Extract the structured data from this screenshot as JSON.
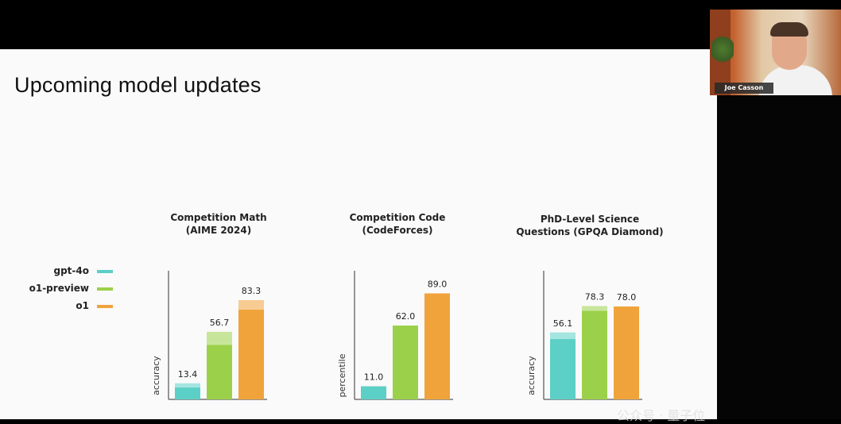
{
  "slide": {
    "title": "Upcoming model updates"
  },
  "legend": [
    {
      "label": "gpt-4o",
      "color": "#5ccfc6"
    },
    {
      "label": "o1-preview",
      "color": "#9bd14a"
    },
    {
      "label": "o1",
      "color": "#f0a33b"
    }
  ],
  "webcam": {
    "name": "Joe Casson"
  },
  "watermark": "公众号 · 量子位",
  "chart_data": [
    {
      "type": "bar",
      "title_line1": "Competition Math",
      "title_line2": "(AIME 2024)",
      "ylabel": "accuracy",
      "categories": [
        "gpt-4o",
        "o1-preview",
        "o1"
      ],
      "values": [
        13.4,
        56.7,
        83.3
      ],
      "value_labels": [
        "13.4",
        "56.7",
        "83.3"
      ],
      "highlight_top": [
        3.5,
        11,
        8
      ],
      "ylim": [
        0,
        100
      ]
    },
    {
      "type": "bar",
      "title_line1": "Competition Code",
      "title_line2": "(CodeForces)",
      "ylabel": "percentile",
      "categories": [
        "gpt-4o",
        "o1-preview",
        "o1"
      ],
      "values": [
        11.0,
        62.0,
        89.0
      ],
      "value_labels": [
        "11.0",
        "62.0",
        "89.0"
      ],
      "highlight_top": [
        0,
        0,
        0
      ],
      "ylim": [
        0,
        100
      ]
    },
    {
      "type": "bar",
      "title_line1": "PhD-Level Science",
      "title_line2": "Questions (GPQA Diamond)",
      "ylabel": "accuracy",
      "categories": [
        "gpt-4o",
        "o1-preview",
        "o1"
      ],
      "values": [
        56.1,
        78.3,
        78.0
      ],
      "value_labels": [
        "56.1",
        "78.3",
        "78.0"
      ],
      "highlight_top": [
        5.5,
        4,
        0
      ],
      "ylim": [
        0,
        100
      ]
    }
  ]
}
